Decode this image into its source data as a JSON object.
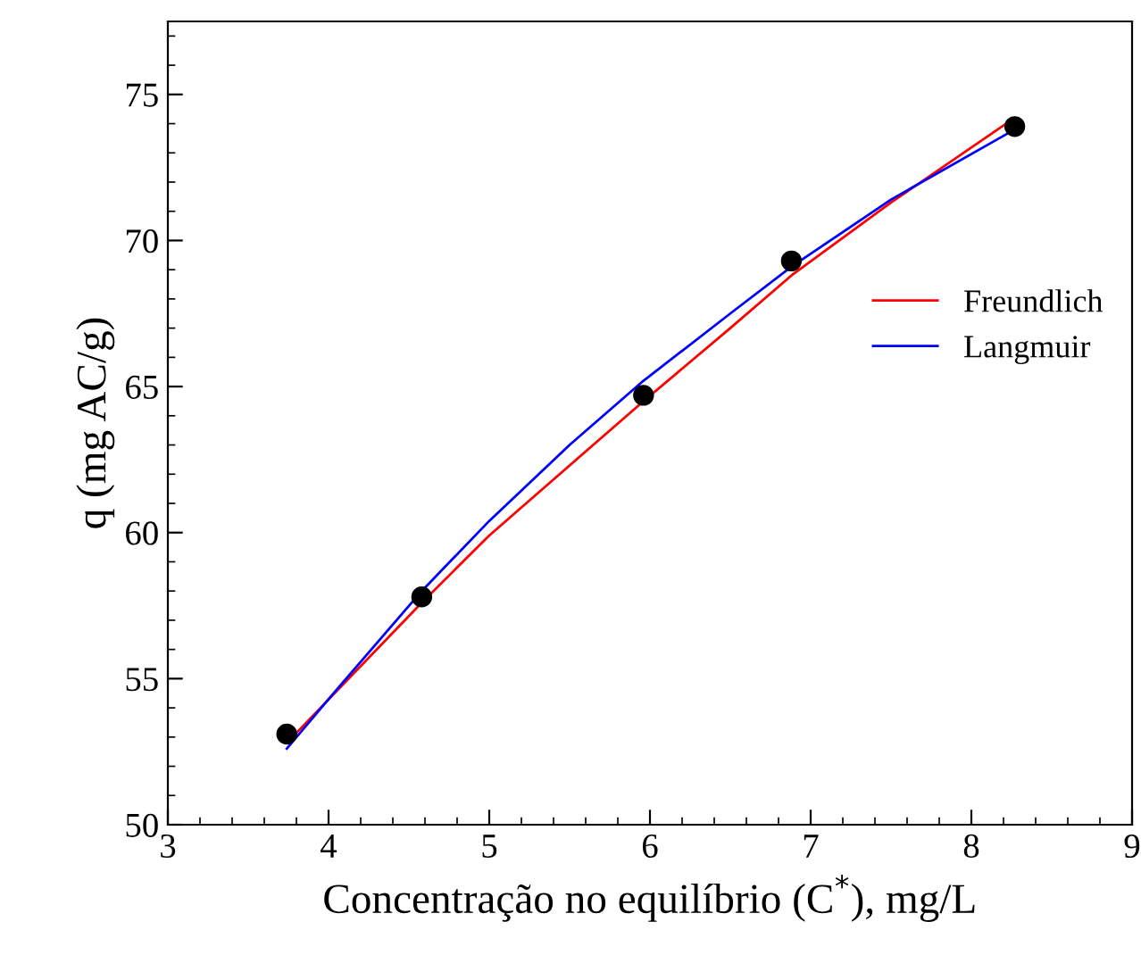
{
  "chart_data": {
    "type": "scatter",
    "xlabel": "Concentração no equilíbrio (C$^{*}$), mg/L",
    "ylabel": "q (mg AC/g)",
    "xlim": [
      3,
      9
    ],
    "xticks": [
      3,
      4,
      5,
      6,
      7,
      8,
      9
    ],
    "ylim": [
      50,
      77.5
    ],
    "yticks": [
      50,
      55,
      60,
      65,
      70,
      75
    ],
    "grid": false,
    "legend": "right",
    "series": [
      {
        "marker": "circle",
        "color": "#000000",
        "x": [
          3.74,
          4.58,
          5.96,
          6.88,
          8.27
        ],
        "values": [
          53.1,
          57.8,
          64.7,
          69.3,
          73.9
        ]
      },
      {
        "type": "line",
        "name": "Freundlich",
        "color": "#ff0000",
        "x": [
          3.74,
          4.58,
          5.0,
          5.5,
          5.96,
          6.5,
          6.88,
          7.5,
          8.27
        ],
        "values": [
          52.8,
          57.6,
          59.9,
          62.3,
          64.5,
          67.0,
          68.8,
          71.3,
          74.2
        ]
      },
      {
        "type": "line",
        "name": "Langmuir",
        "color": "#0000ff",
        "x": [
          3.74,
          4.0,
          4.58,
          5.0,
          5.5,
          5.96,
          6.5,
          6.88,
          7.5,
          8.27
        ],
        "values": [
          52.6,
          54.3,
          58.0,
          60.4,
          63.0,
          65.2,
          67.5,
          69.1,
          71.4,
          73.8
        ]
      }
    ]
  }
}
